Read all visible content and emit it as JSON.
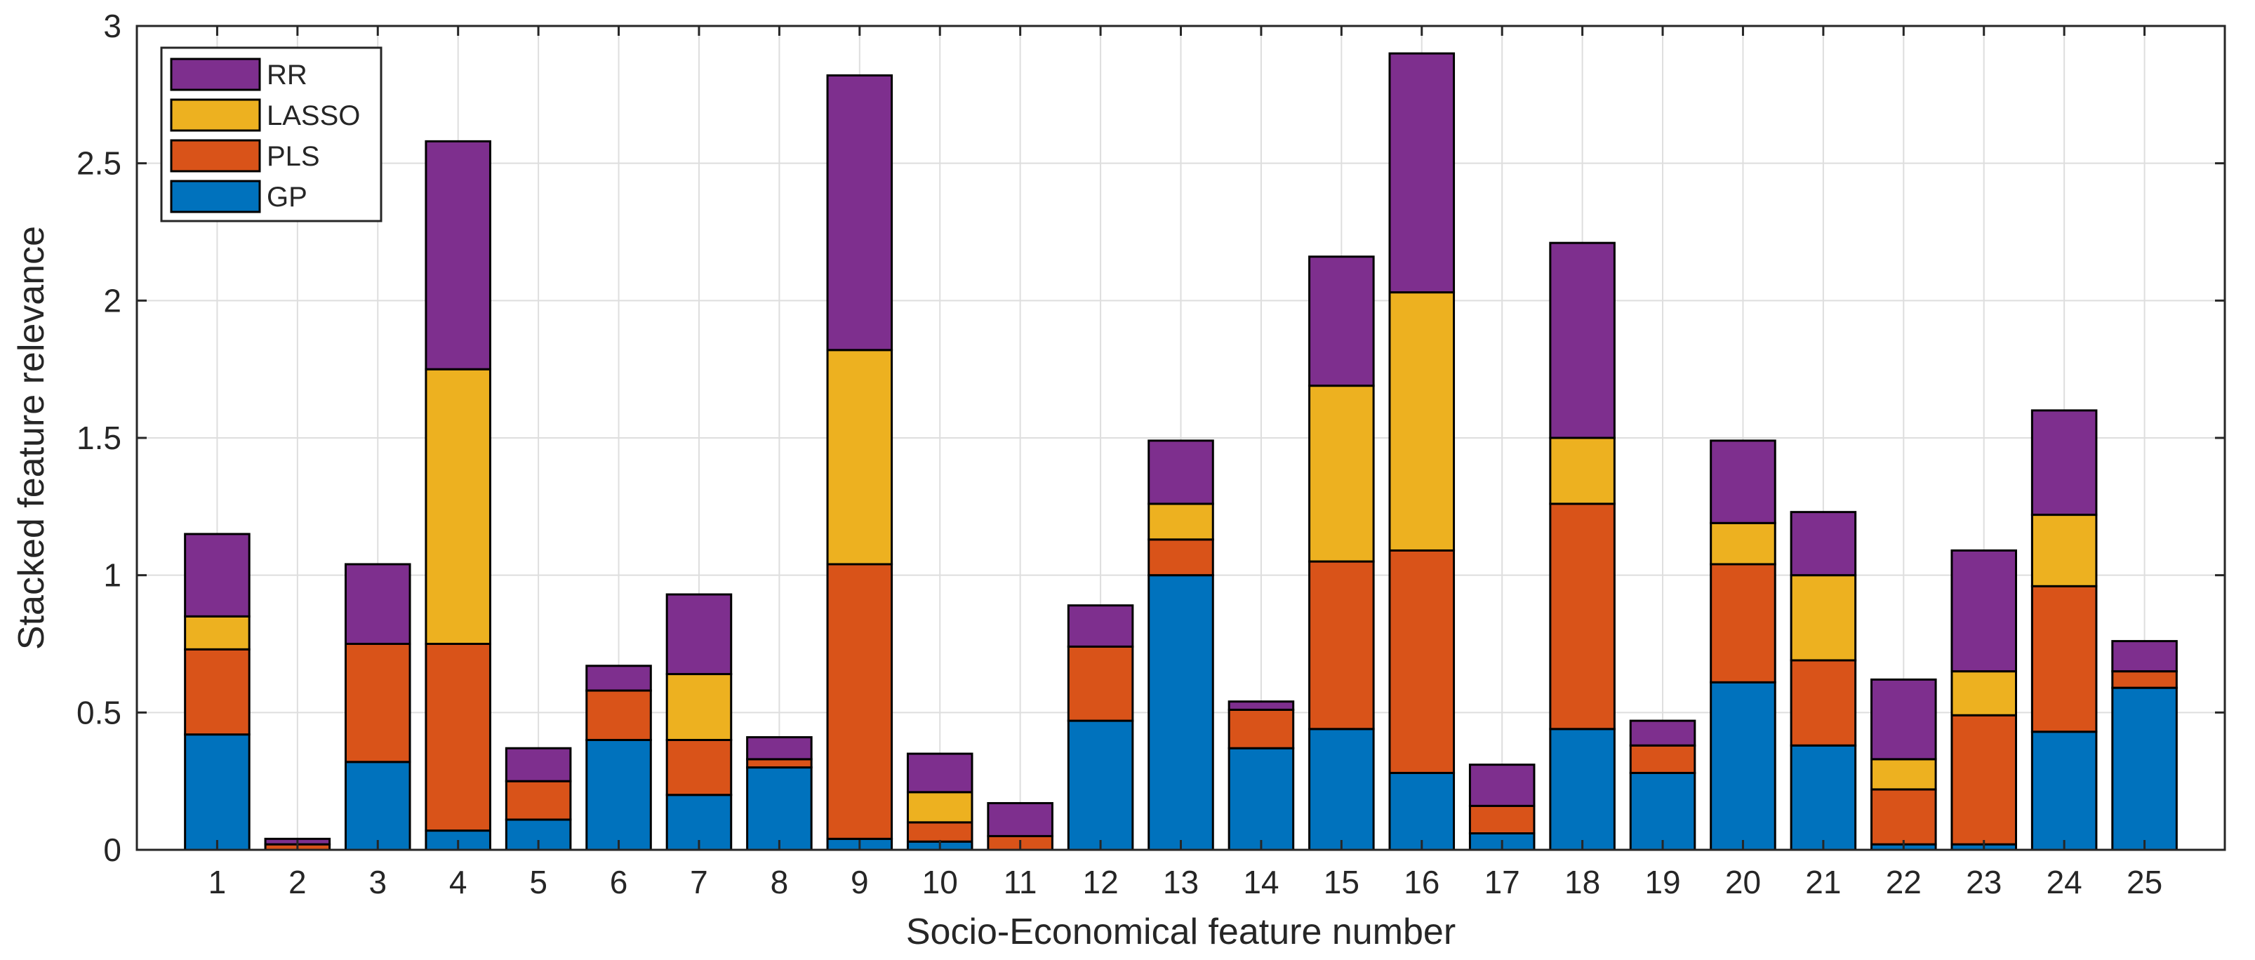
{
  "chart_data": {
    "type": "bar",
    "stacked": true,
    "title": "",
    "xlabel": "Socio-Economical feature number",
    "ylabel": "Stacked feature relevance",
    "ylim": [
      0,
      3
    ],
    "yticks": [
      0,
      0.5,
      1,
      1.5,
      2,
      2.5,
      3
    ],
    "ytick_labels": [
      "0",
      "0.5",
      "1",
      "1.5",
      "2",
      "2.5",
      "3"
    ],
    "grid": true,
    "legend_position": "top-left",
    "categories": [
      "1",
      "2",
      "3",
      "4",
      "5",
      "6",
      "7",
      "8",
      "9",
      "10",
      "11",
      "12",
      "13",
      "14",
      "15",
      "16",
      "17",
      "18",
      "19",
      "20",
      "21",
      "22",
      "23",
      "24",
      "25"
    ],
    "series": [
      {
        "name": "GP",
        "color": "#0072BD",
        "values": [
          0.42,
          0.0,
          0.32,
          0.07,
          0.11,
          0.4,
          0.2,
          0.3,
          0.04,
          0.03,
          0.0,
          0.47,
          1.0,
          0.37,
          0.44,
          0.28,
          0.06,
          0.44,
          0.28,
          0.61,
          0.38,
          0.02,
          0.02,
          0.43,
          0.59
        ]
      },
      {
        "name": "PLS",
        "color": "#D95319",
        "values": [
          0.31,
          0.02,
          0.43,
          0.68,
          0.14,
          0.18,
          0.2,
          0.03,
          1.0,
          0.07,
          0.05,
          0.27,
          0.13,
          0.14,
          0.61,
          0.81,
          0.1,
          0.82,
          0.1,
          0.43,
          0.31,
          0.2,
          0.47,
          0.53,
          0.06
        ]
      },
      {
        "name": "LASSO",
        "color": "#EDB120",
        "values": [
          0.12,
          0.0,
          0.0,
          1.0,
          0.0,
          0.0,
          0.24,
          0.0,
          0.78,
          0.11,
          0.0,
          0.0,
          0.13,
          0.0,
          0.64,
          0.94,
          0.0,
          0.24,
          0.0,
          0.15,
          0.31,
          0.11,
          0.16,
          0.26,
          0.0
        ]
      },
      {
        "name": "RR",
        "color": "#7E2F8E",
        "values": [
          0.3,
          0.02,
          0.29,
          0.83,
          0.12,
          0.09,
          0.29,
          0.08,
          1.0,
          0.14,
          0.12,
          0.15,
          0.23,
          0.03,
          0.47,
          0.87,
          0.15,
          0.71,
          0.09,
          0.3,
          0.23,
          0.29,
          0.44,
          0.38,
          0.11
        ]
      }
    ],
    "legend_order": [
      "RR",
      "LASSO",
      "PLS",
      "GP"
    ]
  }
}
